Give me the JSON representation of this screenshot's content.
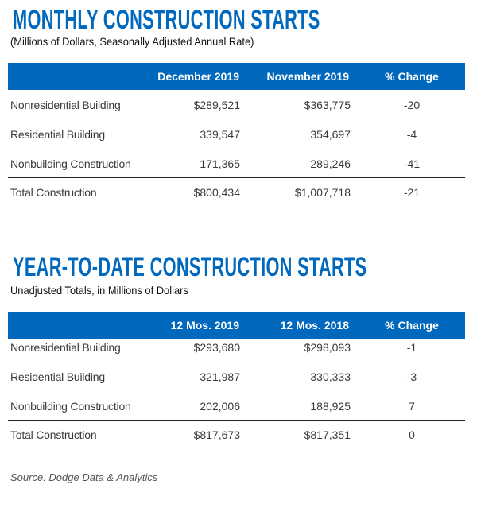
{
  "monthly": {
    "title": "MONTHLY CONSTRUCTION STARTS",
    "subtitle": "(Millions of Dollars, Seasonally Adjusted Annual Rate)",
    "headers": [
      "December 2019",
      "November 2019",
      "% Change"
    ],
    "rows": [
      {
        "label": "Nonresidential Building",
        "v1": "$289,521",
        "v2": "$363,775",
        "change": "-20"
      },
      {
        "label": "Residential Building",
        "v1": "339,547",
        "v2": "354,697",
        "change": "-4"
      },
      {
        "label": "Nonbuilding Construction",
        "v1": "171,365",
        "v2": "289,246",
        "change": "-41"
      },
      {
        "label": "Total Construction",
        "v1": "$800,434",
        "v2": "$1,007,718",
        "change": "-21"
      }
    ]
  },
  "ytd": {
    "title": "YEAR-TO-DATE CONSTRUCTION STARTS",
    "subtitle": "Unadjusted Totals, in Millions of Dollars",
    "headers": [
      "12 Mos. 2019",
      "12 Mos. 2018",
      "% Change"
    ],
    "rows": [
      {
        "label": "Nonresidential Building",
        "v1": "$293,680",
        "v2": "$298,093",
        "change": "-1"
      },
      {
        "label": "Residential Building",
        "v1": "321,987",
        "v2": "330,333",
        "change": "-3"
      },
      {
        "label": "Nonbuilding Construction",
        "v1": "202,006",
        "v2": "188,925",
        "change": "7"
      },
      {
        "label": "Total Construction",
        "v1": "$817,673",
        "v2": "$817,351",
        "change": "0"
      }
    ]
  },
  "source": "Source: Dodge Data & Analytics",
  "colors": {
    "accent": "#0068bd",
    "text": "#3a3a3a"
  }
}
